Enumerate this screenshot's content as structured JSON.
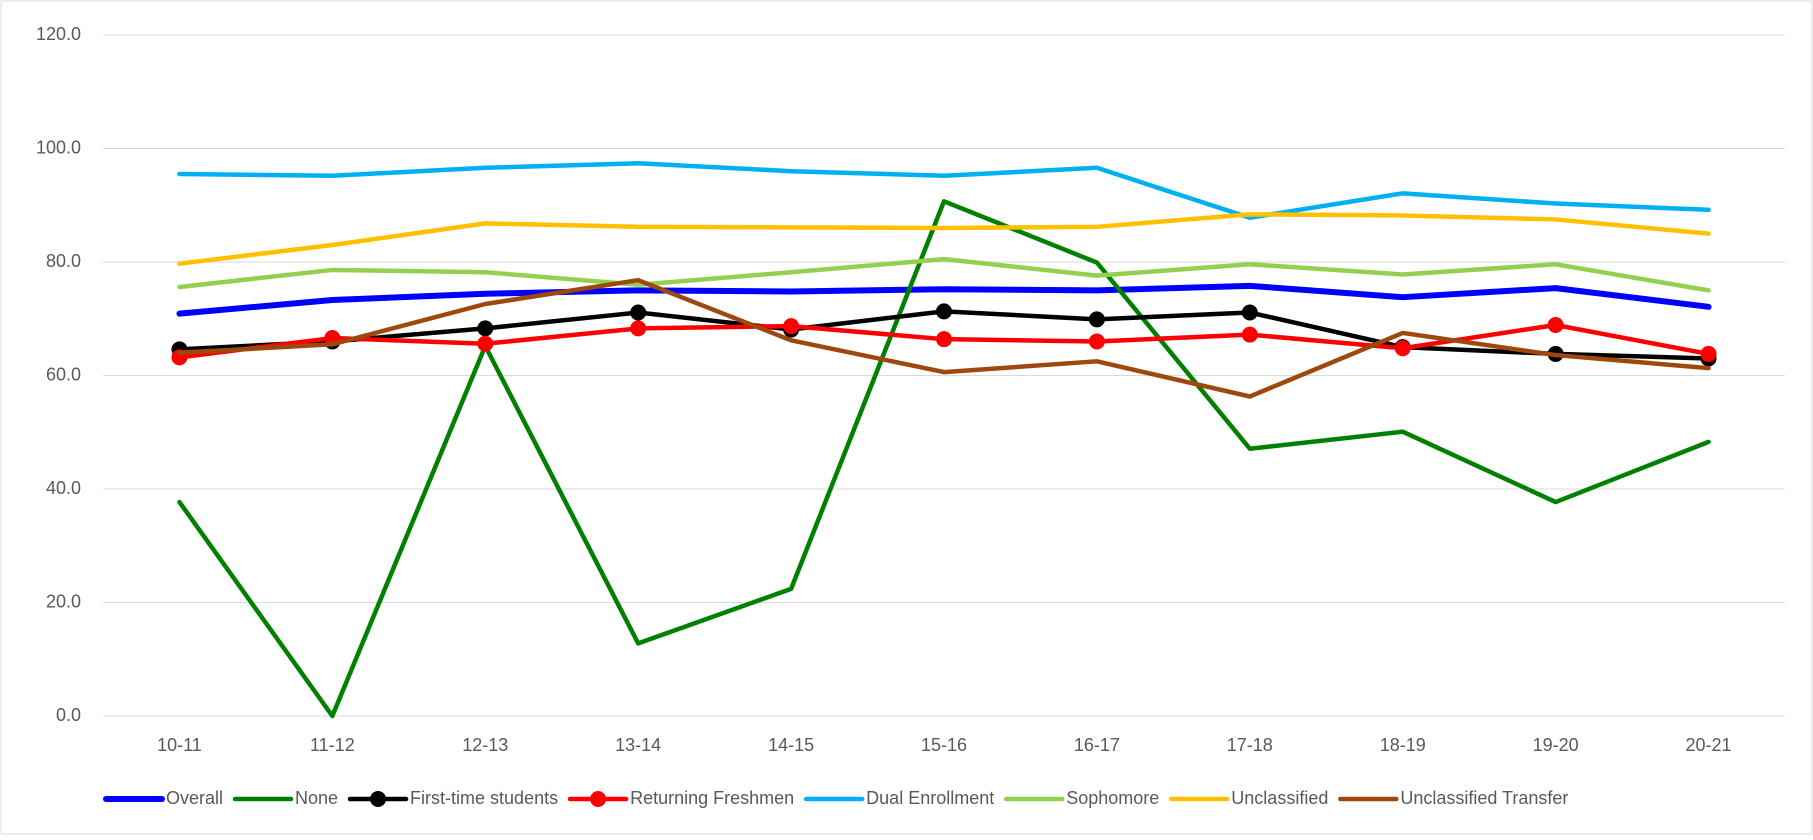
{
  "chart_data": {
    "type": "line",
    "categories": [
      "10-11",
      "11-12",
      "12-13",
      "13-14",
      "14-15",
      "15-16",
      "16-17",
      "17-18",
      "18-19",
      "19-20",
      "20-21"
    ],
    "ylim": [
      0,
      120
    ],
    "yticks": [
      {
        "value": 0,
        "label": "0.0"
      },
      {
        "value": 20,
        "label": "20.0"
      },
      {
        "value": 40,
        "label": "40.0"
      },
      {
        "value": 60,
        "label": "60.0"
      },
      {
        "value": 80,
        "label": "80.0"
      },
      {
        "value": 100,
        "label": "100.0"
      },
      {
        "value": 120,
        "label": "120.0"
      }
    ],
    "grid": true,
    "legend": "bottom",
    "series": [
      {
        "name": "Overall",
        "color": "#0000ff",
        "values": [
          70.9,
          73.3,
          74.4,
          75.0,
          74.8,
          75.2,
          75.0,
          75.8,
          73.8,
          75.4,
          72.1
        ]
      },
      {
        "name": "None",
        "color": "#008000",
        "values": [
          37.7,
          0,
          65.2,
          12.8,
          22.4,
          90.7,
          79.9,
          47.1,
          50.1,
          37.7,
          48.3
        ]
      },
      {
        "name": "First-time students",
        "color": "#000000",
        "marker": "circle",
        "values": [
          64.6,
          66.0,
          68.3,
          71.1,
          68.1,
          71.3,
          69.9,
          71.1,
          65.0,
          63.8,
          63.0
        ]
      },
      {
        "name": "Returning Freshmen",
        "color": "#ff0000",
        "marker": "circle",
        "values": [
          63.2,
          66.6,
          65.6,
          68.3,
          68.7,
          66.4,
          66.0,
          67.2,
          64.8,
          68.9,
          63.8
        ]
      },
      {
        "name": "Dual Enrollment",
        "color": "#00b0f0",
        "values": [
          95.5,
          95.2,
          96.6,
          97.4,
          96.0,
          95.2,
          96.6,
          87.8,
          92.1,
          90.3,
          89.2
        ]
      },
      {
        "name": "Sophomore",
        "color": "#92d050",
        "values": [
          75.6,
          78.6,
          78.2,
          76.0,
          78.2,
          80.5,
          77.6,
          79.6,
          77.8,
          79.6,
          75.0
        ]
      },
      {
        "name": "Unclassified",
        "color": "#ffc000",
        "values": [
          79.7,
          83.0,
          86.8,
          86.2,
          86.1,
          86.0,
          86.2,
          88.4,
          88.2,
          87.5,
          85.0
        ]
      },
      {
        "name": "Unclassified Transfer",
        "color": "#9e480e",
        "values": [
          64.0,
          65.5,
          72.6,
          76.8,
          66.2,
          60.6,
          62.5,
          56.3,
          67.5,
          63.6,
          61.3
        ]
      }
    ]
  }
}
